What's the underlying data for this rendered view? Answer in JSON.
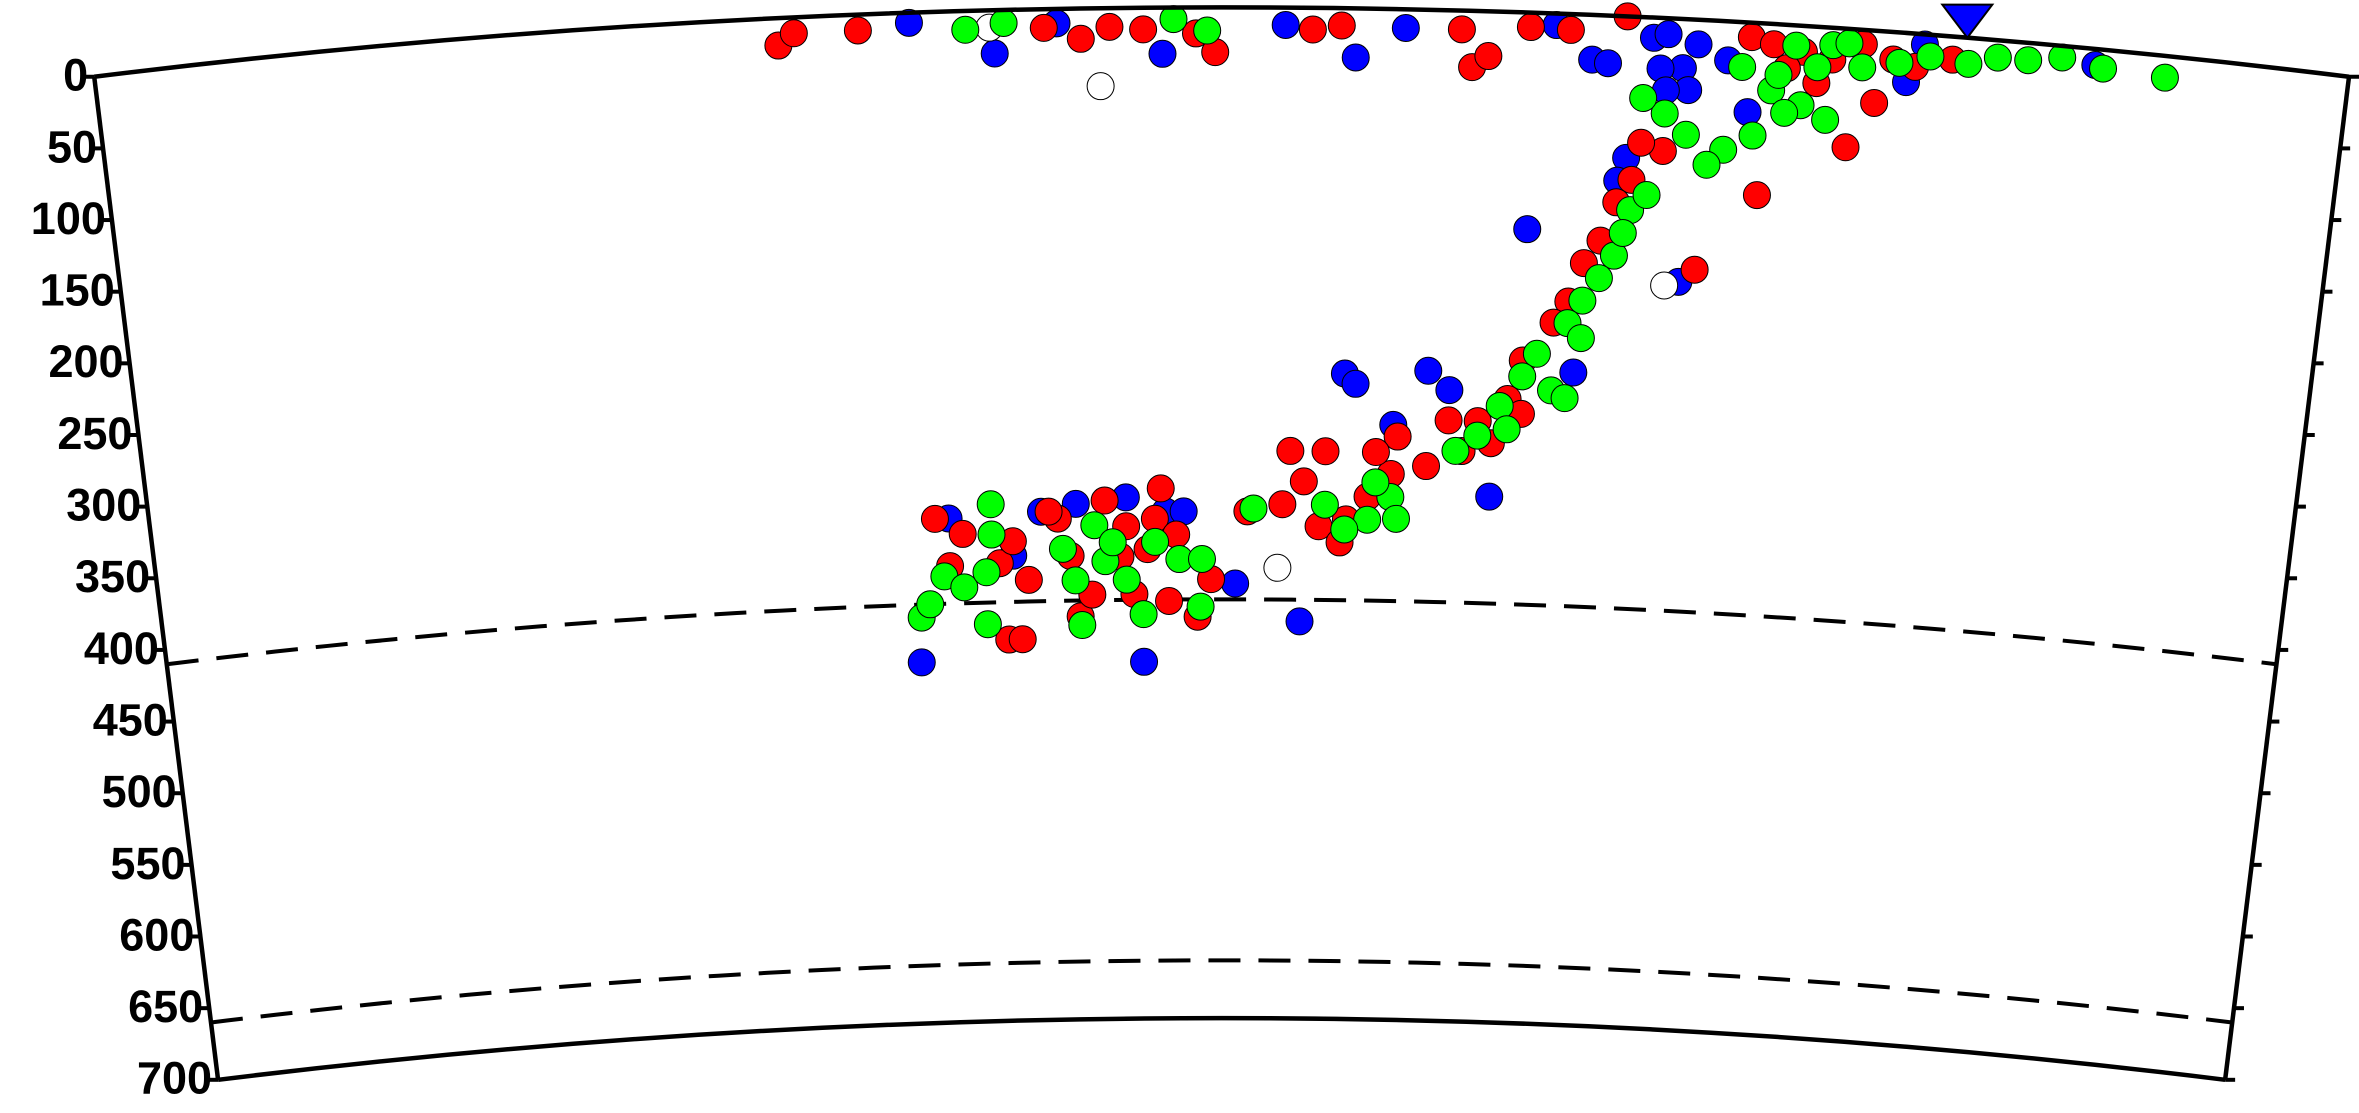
{
  "chart_data": {
    "type": "scatter",
    "xlim": [
      0,
      14.08
    ],
    "ylim": [
      0,
      700
    ],
    "y_inverted": true,
    "yticks": [
      0,
      50,
      100,
      150,
      200,
      250,
      300,
      350,
      400,
      450,
      500,
      550,
      600,
      650,
      700
    ],
    "discontinuities": [
      410,
      660
    ],
    "station_x": 11.69,
    "station_color": "#0000ff",
    "series": [
      {
        "color": "#0000ff",
        "x": [
          5.09,
          5.62,
          6.01,
          6.67,
          7.44,
          7.88,
          8.19,
          9.13,
          9.36,
          9.46,
          9.74,
          9.93,
          9.83,
          10.02,
          10.21,
          11.33,
          11.43,
          12.5,
          9.79,
          9.97,
          10.35,
          9.83,
          8.99,
          9.97,
          9.32,
          8.8,
          8.52,
          9.6,
          9.55,
          7.84,
          7.91,
          7.56,
          8.38,
          8.16,
          7.13,
          5.03,
          5.24,
          5.66,
          5.85,
          6.08,
          6.41,
          6.52,
          6.67,
          6.79
        ],
        "values": [
          7,
          30,
          10,
          32,
          12,
          34,
          13,
          8,
          31,
          33,
          14,
          34,
          11,
          17,
          27,
          34,
          7,
          11,
          35,
          49,
          62,
          50,
          150,
          182,
          248,
          336,
          263,
          98,
          114,
          253,
          260,
          425,
          250,
          288,
          399,
          450,
          351,
          378,
          348,
          343,
          339,
          453,
          349,
          349
        ]
      },
      {
        "color": "#ff0000",
        "x": [
          4.27,
          4.37,
          4.77,
          5.93,
          6.16,
          6.34,
          6.55,
          6.88,
          7.0,
          7.61,
          7.79,
          8.54,
          8.61,
          8.71,
          8.97,
          9.22,
          9.57,
          10.35,
          10.49,
          10.86,
          11.14,
          10.98,
          10.44,
          10.77,
          11.24,
          11.61,
          11.38,
          11.05,
          10.68,
          10.58,
          9.64,
          9.55,
          9.46,
          9.36,
          9.27,
          9.18,
          8.99,
          8.9,
          8.71,
          8.61,
          8.52,
          8.8,
          8.99,
          8.38,
          10.07,
          9.83,
          9.69,
          7.44,
          7.58,
          7.72,
          7.86,
          8.0,
          8.15,
          8.19,
          8.05,
          7.68,
          7.82,
          7.49,
          7.21,
          5.15,
          5.24,
          5.33,
          5.57,
          5.62,
          5.71,
          5.66,
          5.76,
          5.96,
          6.04,
          6.1,
          6.27,
          6.37,
          6.46,
          6.55,
          6.6,
          6.69,
          6.74,
          6.88,
          6.97,
          6.18,
          5.9,
          6.41,
          6.64
        ],
        "values": [
          19,
          11,
          11,
          13,
          21,
          13,
          15,
          18,
          31,
          15,
          12,
          13,
          39,
          31,
          10,
          11,
          0,
          10,
          14,
          22,
          50,
          82,
          119,
          39,
          19,
          16,
          23,
          10,
          18,
          30,
          113,
          129,
          156,
          172,
          199,
          214,
          241,
          268,
          284,
          305,
          284,
          299,
          278,
          316,
          173,
          92,
          87,
          344,
          328,
          307,
          354,
          338,
          322,
          296,
          307,
          359,
          370,
          307,
          349,
          351,
          384,
          362,
          383,
          436,
          436,
          368,
          395,
          353,
          379,
          421,
          341,
          380,
          406,
          375,
          354,
          411,
          365,
          422,
          396,
          406,
          348,
          359,
          333
        ]
      },
      {
        "color": "#ffffff",
        "x": [
          6.28,
          5.59,
          9.88,
          7.41
        ],
        "values": [
          54,
          12,
          185,
          388
        ]
      },
      {
        "color": "#00ff00",
        "x": [
          5.44,
          5.68,
          6.74,
          6.95,
          11.71,
          11.89,
          12.08,
          12.29,
          12.55,
          12.94,
          11.47,
          11.28,
          11.05,
          10.86,
          10.63,
          10.3,
          10.49,
          10.68,
          10.77,
          10.58,
          10.39,
          10.21,
          10.11,
          9.97,
          9.83,
          9.69,
          10.53,
          10.84,
          10.96,
          9.55,
          9.46,
          9.36,
          9.27,
          9.08,
          8.99,
          8.85,
          8.71,
          8.57,
          9.18,
          9.27,
          9.64,
          9.74,
          9.6,
          9.36,
          8.9,
          7.25,
          7.72,
          8.0,
          8.15,
          8.05,
          8.19,
          7.85,
          5.04,
          5.1,
          5.2,
          5.33,
          5.48,
          5.52,
          5.52,
          5.48,
          5.99,
          6.07,
          6.2,
          6.27,
          6.41,
          6.52,
          6.6,
          6.76,
          6.91,
          6.32,
          6.9,
          6.11
        ],
        "values": [
          13,
          9,
          8,
          16,
          18,
          12,
          12,
          8,
          13,
          15,
          15,
          21,
          26,
          12,
          14,
          31,
          46,
          55,
          28,
          61,
          78,
          89,
          100,
          80,
          66,
          56,
          35,
          64,
          10,
          166,
          182,
          198,
          214,
          236,
          252,
          273,
          294,
          305,
          261,
          266,
          134,
          123,
          150,
          224,
          289,
          347,
          344,
          354,
          338,
          328,
          353,
          361,
          419,
          410,
          391,
          399,
          389,
          363,
          342,
          425,
          374,
          396,
          358,
          383,
          396,
          420,
          370,
          382,
          382,
          370,
          415,
          427
        ]
      }
    ]
  }
}
